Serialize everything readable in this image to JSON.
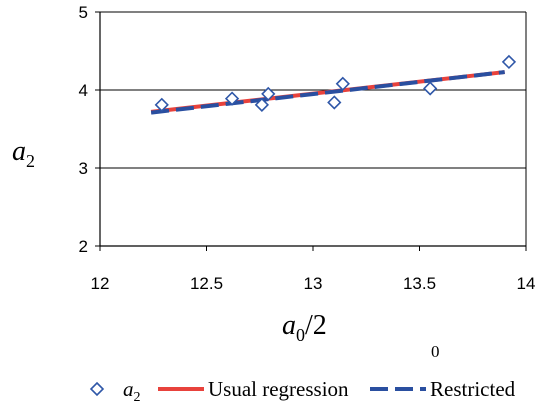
{
  "chart_data": {
    "type": "scatter",
    "x_tick_labels": [
      "12",
      "12.5",
      "13",
      "13.5",
      "14"
    ],
    "y_tick_labels": [
      "2",
      "3",
      "4",
      "5"
    ],
    "xlim": [
      12,
      14
    ],
    "ylim": [
      2,
      5
    ],
    "grid": {
      "horizontal": true,
      "vertical": false,
      "y_lines": [
        3,
        4
      ]
    },
    "xlabel": {
      "main": "a",
      "sub": "0",
      "suffix": "/2",
      "stray_note": "0"
    },
    "ylabel": {
      "main": "a",
      "sub": "2"
    },
    "series": [
      {
        "name": "a2",
        "label_main": "a",
        "label_sub": "2",
        "kind": "points",
        "marker": "diamond-open",
        "color": "#2f57a8",
        "x": [
          12.29,
          12.62,
          12.76,
          12.79,
          13.1,
          13.14,
          13.55,
          13.92
        ],
        "y": [
          3.81,
          3.89,
          3.81,
          3.95,
          3.84,
          4.08,
          4.02,
          4.36
        ]
      },
      {
        "name": "Usual regression",
        "kind": "line",
        "style": "solid",
        "color": "#e8423c",
        "x": [
          12.24,
          13.9
        ],
        "y": [
          3.72,
          4.23
        ]
      },
      {
        "name": "Restricted",
        "kind": "line",
        "style": "dashed",
        "color": "#2a4fa0",
        "x": [
          12.24,
          13.9
        ],
        "y": [
          3.71,
          4.23
        ]
      }
    ],
    "legend_position": "bottom"
  }
}
